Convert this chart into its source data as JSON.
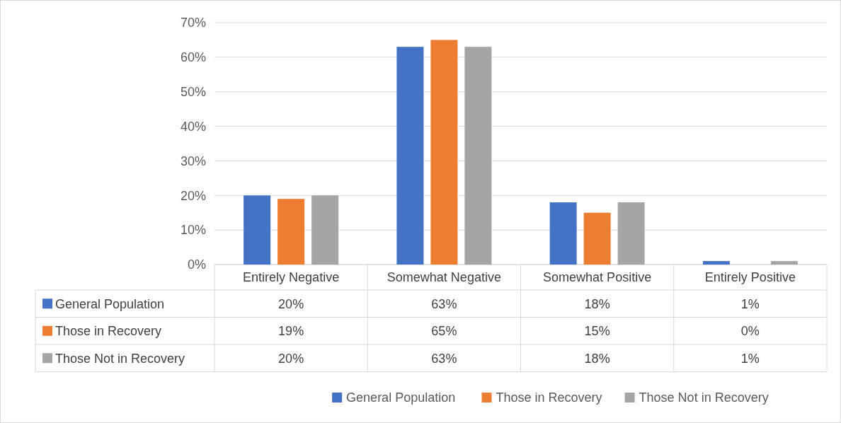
{
  "chart_data": {
    "type": "bar",
    "categories": [
      "Entirely Negative",
      "Somewhat Negative",
      "Somewhat Positive",
      "Entirely Positive"
    ],
    "series": [
      {
        "name": "General Population",
        "color": "#4472c4",
        "values": [
          20,
          63,
          18,
          1
        ],
        "value_labels": [
          "20%",
          "63%",
          "18%",
          "1%"
        ]
      },
      {
        "name": "Those in Recovery",
        "color": "#ed7d31",
        "values": [
          19,
          65,
          15,
          0
        ],
        "value_labels": [
          "19%",
          "65%",
          "15%",
          "0%"
        ]
      },
      {
        "name": "Those Not in Recovery",
        "color": "#a5a5a5",
        "values": [
          20,
          63,
          18,
          1
        ],
        "value_labels": [
          "20%",
          "63%",
          "18%",
          "1%"
        ]
      }
    ],
    "ylim": [
      0,
      70
    ],
    "yticks": [
      {
        "value": 0,
        "label": "0%"
      },
      {
        "value": 10,
        "label": "10%"
      },
      {
        "value": 20,
        "label": "20%"
      },
      {
        "value": 30,
        "label": "30%"
      },
      {
        "value": 40,
        "label": "40%"
      },
      {
        "value": 50,
        "label": "50%"
      },
      {
        "value": 60,
        "label": "60%"
      },
      {
        "value": 70,
        "label": "70%"
      }
    ],
    "grid": "y",
    "legend": "bottom"
  }
}
